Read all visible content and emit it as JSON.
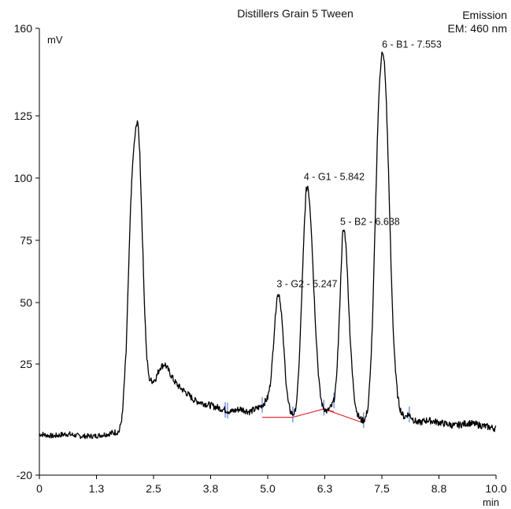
{
  "chart_data": {
    "type": "line",
    "title": "Distillers Grain 5 Tween",
    "detector": {
      "line1": "Emission",
      "line2": "EM: 460 nm"
    },
    "ylabel": "mV",
    "xlabel": "min",
    "xlim": [
      0,
      10
    ],
    "ylim": [
      -20,
      160
    ],
    "x_ticks": [
      "0",
      "1.3",
      "2.5",
      "3.8",
      "5.0",
      "6.3",
      "7.5",
      "8.8",
      "10.0"
    ],
    "y_ticks": [
      "160",
      "125",
      "100",
      "75",
      "50",
      "25",
      "-20"
    ],
    "grid": false,
    "legend": "none",
    "colors": {
      "trace": "#000000",
      "baseline": "#e8313a",
      "markers": "#5b7fd8"
    },
    "peaks": [
      {
        "label": "3 - G2 - 5.247",
        "x": 5.247,
        "y": 54
      },
      {
        "label": "4 - G1 - 5.842",
        "x": 5.842,
        "y": 97
      },
      {
        "label": "5 - B2 - 6.638",
        "x": 6.638,
        "y": 79
      },
      {
        "label": "6 - B1 - 7.553",
        "x": 7.553,
        "y": 150
      }
    ],
    "other_peaks": [
      {
        "x": 2.15,
        "y": 124
      },
      {
        "x": 2.75,
        "y": 25
      }
    ],
    "baseline_segments": [
      {
        "x": [
          4.88,
          5.55,
          6.23,
          7.1
        ],
        "y": [
          6,
          6,
          9,
          4
        ]
      },
      {
        "x": [
          6.23,
          6.45
        ],
        "y": [
          9,
          8
        ]
      }
    ],
    "marker_ticks": [
      4.07,
      4.12,
      4.88,
      5.55,
      6.23,
      6.45,
      7.1,
      8.1
    ],
    "series": [
      {
        "x": [
          0,
          0.3,
          0.6,
          0.9,
          1.2,
          1.5,
          1.75,
          1.82,
          1.9,
          1.95,
          2.0,
          2.05,
          2.1,
          2.15,
          2.2,
          2.25,
          2.3,
          2.35,
          2.4,
          2.45,
          2.5,
          2.55,
          2.65,
          2.75,
          2.85,
          2.95,
          3.05,
          3.2,
          3.4,
          3.6,
          3.8,
          4.0,
          4.2,
          4.4,
          4.6,
          4.75,
          4.85,
          4.92,
          5.0,
          5.05,
          5.1,
          5.15,
          5.2,
          5.25,
          5.3,
          5.35,
          5.4,
          5.45,
          5.5,
          5.55,
          5.6,
          5.65,
          5.7,
          5.75,
          5.8,
          5.84,
          5.88,
          5.92,
          5.96,
          6.0,
          6.05,
          6.1,
          6.15,
          6.2,
          6.25,
          6.3,
          6.35,
          6.4,
          6.45,
          6.5,
          6.55,
          6.6,
          6.64,
          6.68,
          6.72,
          6.76,
          6.8,
          6.85,
          6.9,
          6.95,
          7.0,
          7.05,
          7.1,
          7.15,
          7.2,
          7.25,
          7.3,
          7.35,
          7.4,
          7.45,
          7.5,
          7.55,
          7.6,
          7.65,
          7.7,
          7.75,
          7.8,
          7.85,
          7.9,
          7.95,
          8.0,
          8.05,
          8.1,
          8.2,
          8.3,
          8.5,
          8.8,
          9.1,
          9.4,
          9.7,
          10.0
        ],
        "y": [
          0,
          -1,
          0,
          -1,
          -1,
          0,
          1,
          7,
          30,
          60,
          90,
          108,
          118,
          124,
          110,
          80,
          50,
          28,
          20,
          19,
          19,
          20,
          24,
          25,
          22,
          19,
          17,
          15,
          12,
          11,
          10,
          9,
          8,
          9,
          8,
          9,
          10,
          11,
          13,
          17,
          26,
          40,
          52,
          54,
          46,
          32,
          19,
          11,
          8,
          7,
          8,
          14,
          30,
          55,
          80,
          95,
          97,
          90,
          78,
          60,
          40,
          24,
          14,
          10,
          9,
          8,
          9,
          10,
          12,
          18,
          35,
          60,
          78,
          79,
          72,
          55,
          38,
          22,
          13,
          8,
          6,
          5,
          5,
          6,
          10,
          22,
          45,
          80,
          115,
          140,
          150,
          148,
          130,
          100,
          65,
          38,
          22,
          13,
          9,
          7,
          6,
          7,
          7,
          5,
          4,
          5,
          4,
          3,
          4,
          3,
          2
        ]
      }
    ]
  }
}
